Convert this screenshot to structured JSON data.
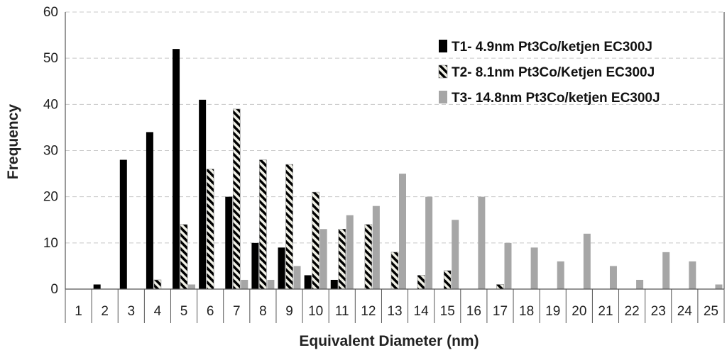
{
  "chart_data": {
    "type": "bar",
    "xlabel": "Equivalent Diameter (nm)",
    "ylabel": "Frequency",
    "ylim": [
      0,
      60
    ],
    "yticks": [
      0,
      10,
      20,
      30,
      40,
      50,
      60
    ],
    "grid": "horizontal-dashed",
    "legend_position": "top-right",
    "categories": [
      "1",
      "2",
      "3",
      "4",
      "5",
      "6",
      "7",
      "8",
      "9",
      "10",
      "11",
      "12",
      "13",
      "14",
      "15",
      "16",
      "17",
      "18",
      "19",
      "20",
      "21",
      "22",
      "23",
      "24",
      "25"
    ],
    "series": [
      {
        "name": "T1- 4.9nm Pt3Co/ketjen EC300J",
        "pattern": "solid",
        "color": "#000000",
        "values": [
          0,
          1,
          28,
          34,
          52,
          41,
          20,
          10,
          9,
          3,
          2,
          0,
          0,
          0,
          0,
          0,
          0,
          0,
          0,
          0,
          0,
          0,
          0,
          0,
          0
        ]
      },
      {
        "name": "T2- 8.1nm Pt3Co/Ketjen EC300J",
        "pattern": "diagonal-stripes",
        "color": "#000000",
        "values": [
          0,
          0,
          0,
          2,
          14,
          26,
          39,
          28,
          27,
          21,
          13,
          14,
          8,
          3,
          4,
          0,
          1,
          0,
          0,
          0,
          0,
          0,
          0,
          0,
          0
        ]
      },
      {
        "name": "T3- 14.8nm Pt3Co/ketjen EC300J",
        "pattern": "solid",
        "color": "#a6a6a6",
        "values": [
          0,
          0,
          0,
          0,
          1,
          0,
          2,
          2,
          5,
          13,
          16,
          18,
          25,
          20,
          15,
          20,
          10,
          9,
          6,
          12,
          5,
          2,
          8,
          6,
          1
        ]
      }
    ]
  }
}
